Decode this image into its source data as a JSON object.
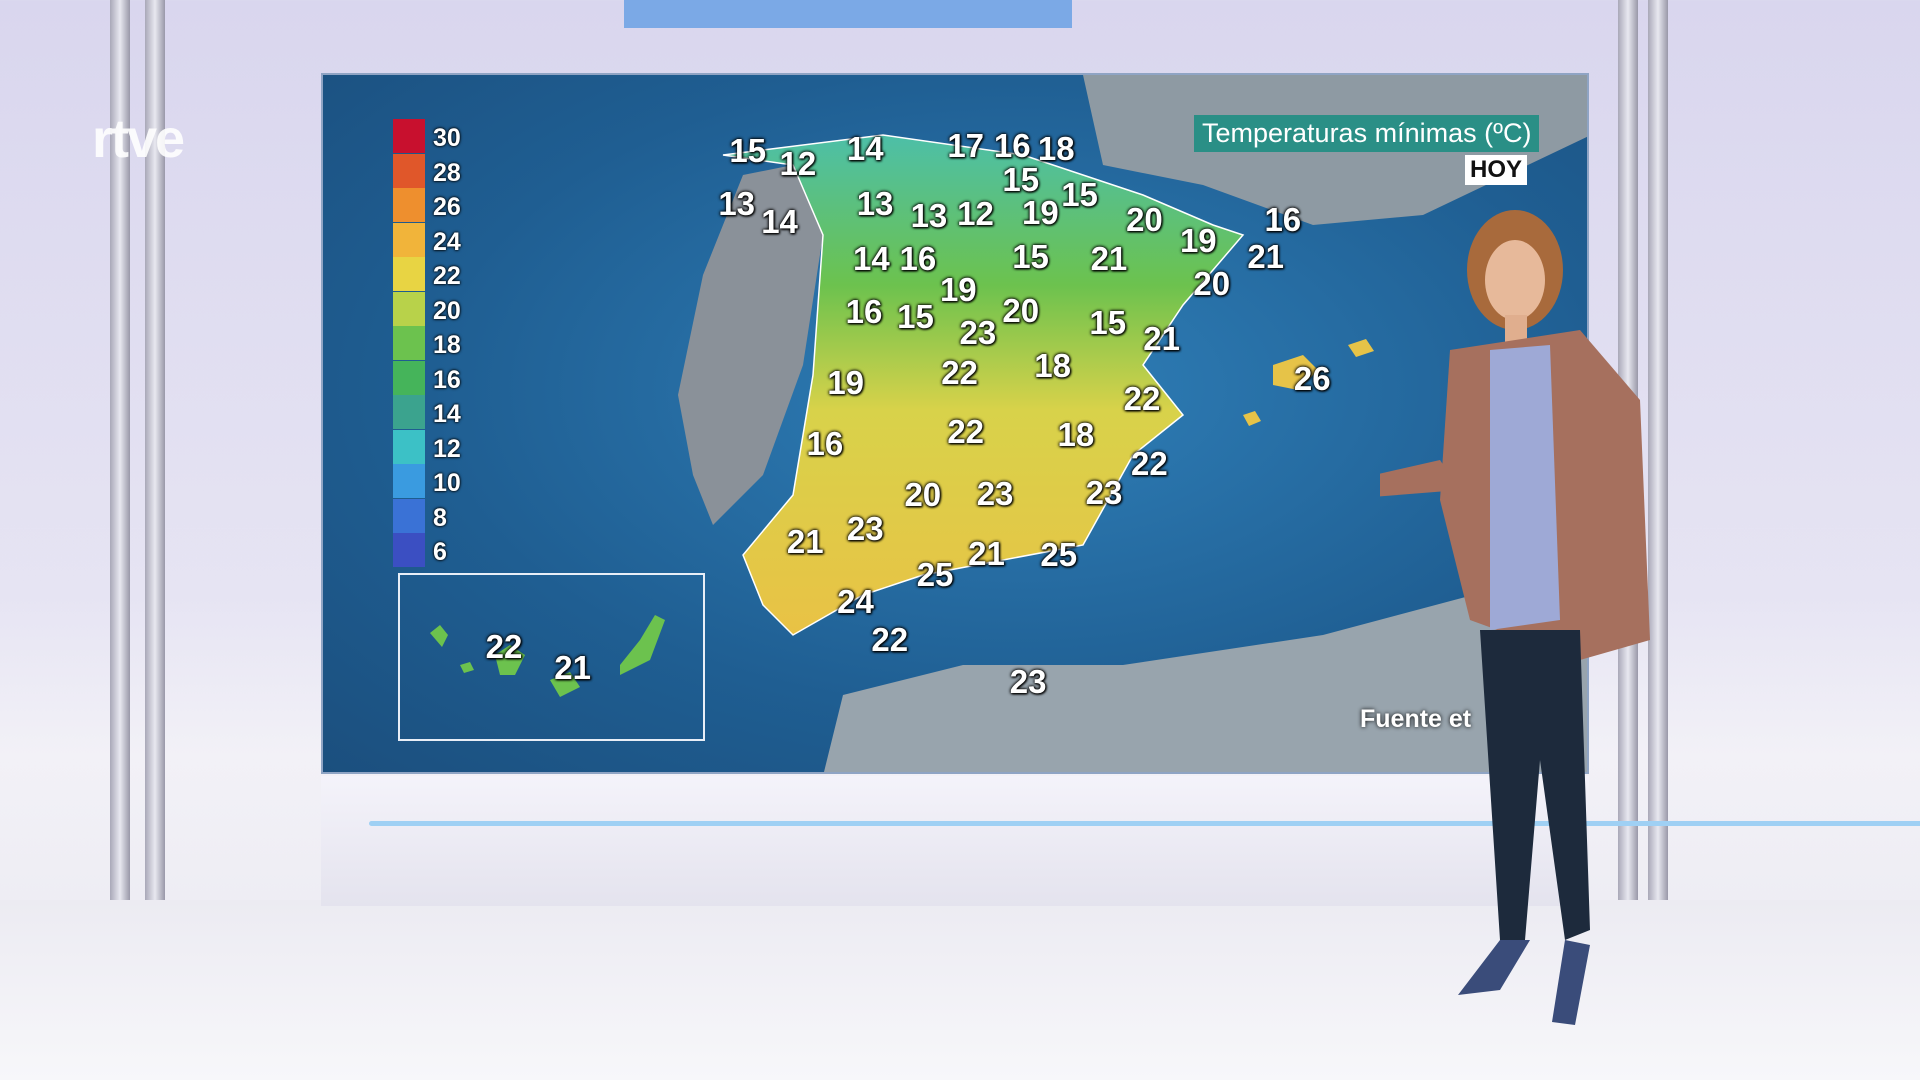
{
  "channel_logo": "rtve",
  "map": {
    "title": "Temperaturas mínimas (ºC)",
    "day_badge": "HOY",
    "source": "Fuente: Aemet",
    "source_visible": "Fuente        et",
    "legend": [
      {
        "label": "30",
        "color": "#c8102e"
      },
      {
        "label": "28",
        "color": "#e0572a"
      },
      {
        "label": "26",
        "color": "#ee8f2e"
      },
      {
        "label": "24",
        "color": "#f1b43a"
      },
      {
        "label": "22",
        "color": "#e8d443"
      },
      {
        "label": "20",
        "color": "#b8d24a"
      },
      {
        "label": "18",
        "color": "#6cc24e"
      },
      {
        "label": "16",
        "color": "#45b45a"
      },
      {
        "label": "14",
        "color": "#3ba38e"
      },
      {
        "label": "12",
        "color": "#3cc1c6"
      },
      {
        "label": "10",
        "color": "#3a9be0"
      },
      {
        "label": "8",
        "color": "#3a72d6"
      },
      {
        "label": "6",
        "color": "#3b4fc2"
      }
    ],
    "temperatures": [
      "15",
      "12",
      "14",
      "17",
      "16",
      "18",
      "13",
      "14",
      "13",
      "15",
      "13",
      "12",
      "19",
      "15",
      "20",
      "19",
      "16",
      "21",
      "14",
      "16",
      "15",
      "21",
      "20",
      "19",
      "16",
      "15",
      "23",
      "20",
      "15",
      "21",
      "26",
      "19",
      "22",
      "18",
      "22",
      "16",
      "22",
      "18",
      "22",
      "20",
      "23",
      "23",
      "21",
      "23",
      "21",
      "25",
      "25",
      "24",
      "22",
      "23",
      "22",
      "21"
    ]
  }
}
